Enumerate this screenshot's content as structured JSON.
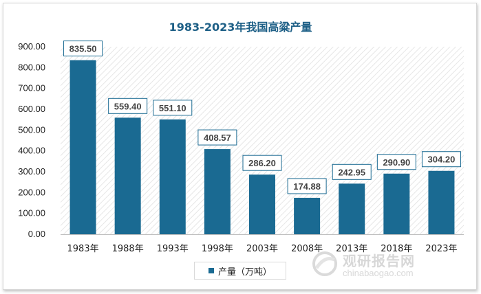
{
  "chart_data": {
    "type": "bar",
    "title": "1983-2023年我国高粱产量",
    "categories": [
      "1983年",
      "1988年",
      "1993年",
      "1998年",
      "2003年",
      "2008年",
      "2013年",
      "2018年",
      "2023年"
    ],
    "series": [
      {
        "name": "产量（万吨）",
        "values": [
          835.5,
          559.4,
          551.1,
          408.57,
          286.2,
          174.88,
          242.95,
          290.9,
          304.2
        ]
      }
    ],
    "value_labels": [
      "835.50",
      "559.40",
      "551.10",
      "408.57",
      "286.20",
      "174.88",
      "242.95",
      "290.90",
      "304.20"
    ],
    "yticks": [
      "0.00",
      "100.00",
      "200.00",
      "300.00",
      "400.00",
      "500.00",
      "600.00",
      "700.00",
      "800.00",
      "900.00"
    ],
    "ylim": [
      0,
      900
    ],
    "grid": false,
    "plot_background": "diagonal-hatch",
    "legend_position": "bottom",
    "colors": {
      "bar": "#1a6a92",
      "title": "#1d5f86",
      "label_border": "#1a6a92"
    }
  },
  "watermark": {
    "brand_cn": "观研报告网",
    "brand_en": "chinabaogao.com"
  }
}
